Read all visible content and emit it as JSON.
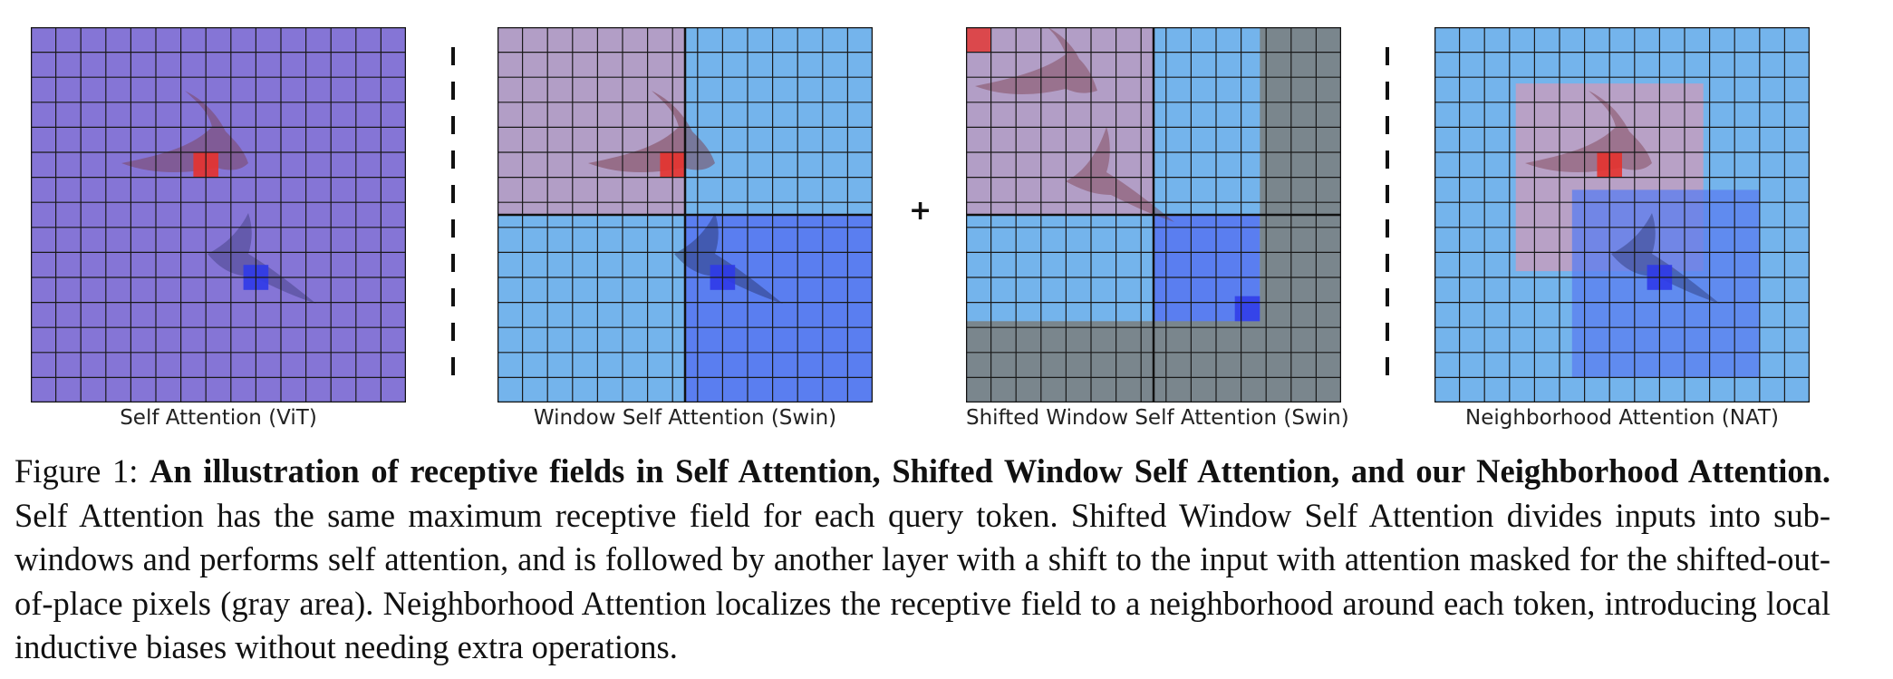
{
  "panels": [
    {
      "id": "vit",
      "caption": "Self Attention (ViT)"
    },
    {
      "id": "swin",
      "caption": "Window Self Attention (Swin)"
    },
    {
      "id": "shifted",
      "caption": "Shifted Window Self Attention (Swin)"
    },
    {
      "id": "nat",
      "caption": "Neighborhood Attention (NAT)"
    }
  ],
  "combiner_symbol": "+",
  "colors": {
    "query_red": "#e5322d",
    "query_blue": "#2f3ae8",
    "purple_full": "#8575d6",
    "sky": "#74b4ec",
    "mauve": "#b29ec6",
    "blue_window": "#5a7ef0",
    "masked_gray": "#7a868d"
  },
  "figure_caption": {
    "label": "Figure 1:",
    "bold_title": "An illustration of receptive fields in Self Attention, Shifted Window Self Attention, and our Neighborhood Attention.",
    "body": "Self Attention has the same maximum receptive field for each query token. Shifted Window Self Attention divides inputs into sub-windows and performs self attention, and is followed by another layer with a shift to the input with attention masked for the shifted-out-of-place pixels (gray area). Neighborhood Attention localizes the receptive field to a neighborhood around each token, introducing local inductive biases without needing extra operations."
  }
}
